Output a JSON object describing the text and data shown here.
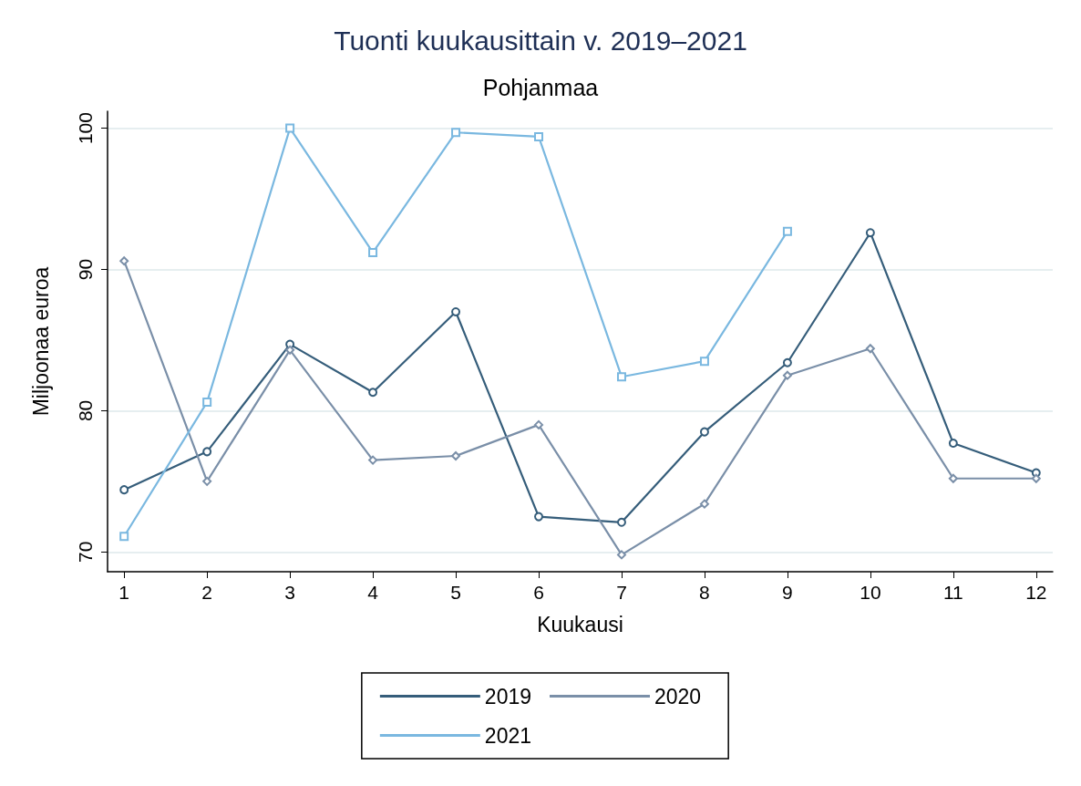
{
  "chart_data": {
    "type": "line",
    "title": "Tuonti kuukausittain v. 2019–2021",
    "subtitle": "Pohjanmaa",
    "xlabel": "Kuukausi",
    "ylabel": "Miljoonaa euroa",
    "x": [
      1,
      2,
      3,
      4,
      5,
      6,
      7,
      8,
      9,
      10,
      11,
      12
    ],
    "xlim": [
      0.8,
      12.2
    ],
    "xticks": [
      1,
      2,
      3,
      4,
      5,
      6,
      7,
      8,
      9,
      10,
      11,
      12
    ],
    "ylim": [
      68.6,
      101.2
    ],
    "yticks": [
      70,
      80,
      90,
      100
    ],
    "grid": "y",
    "legend": "bottom",
    "series": [
      {
        "name": "2019",
        "color": "#355d7a",
        "marker": "circle",
        "values": [
          74.4,
          77.1,
          84.7,
          81.3,
          87.0,
          72.5,
          72.1,
          78.5,
          83.4,
          92.6,
          77.7,
          75.6
        ]
      },
      {
        "name": "2020",
        "color": "#7a8fa8",
        "marker": "diamond",
        "values": [
          90.6,
          75.0,
          84.3,
          76.5,
          76.8,
          79.0,
          69.8,
          73.4,
          82.5,
          84.4,
          75.2,
          75.2
        ]
      },
      {
        "name": "2021",
        "color": "#7ab8e0",
        "marker": "square",
        "values": [
          71.1,
          80.6,
          100.0,
          91.2,
          99.7,
          99.4,
          82.4,
          83.5,
          92.7,
          null,
          null,
          null
        ]
      }
    ]
  }
}
